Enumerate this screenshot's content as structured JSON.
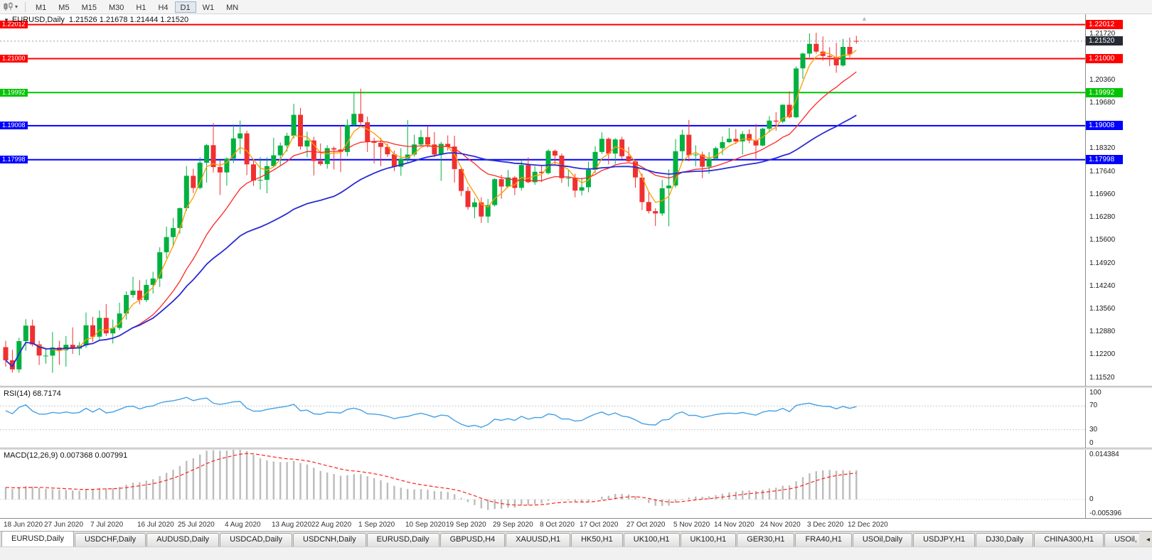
{
  "icons": {
    "dropdown": "▾",
    "collapse": "▼",
    "autoscroll": "▲",
    "tab_scroll_left": "◂"
  },
  "toolbar": {
    "timeframes": [
      "M1",
      "M5",
      "M15",
      "M30",
      "H1",
      "H4",
      "D1",
      "W1",
      "MN"
    ],
    "active_timeframe": "D1"
  },
  "chart": {
    "header_symbol": "EURUSD,Daily",
    "header_ohlc": "1.21526 1.21678 1.21444 1.21520",
    "current_price": "1.21520",
    "current_price_color": "#262a33"
  },
  "chart_data": {
    "type": "candlestick",
    "title": "EURUSD,Daily",
    "symbol": "EURUSD",
    "timeframe": "Daily",
    "grid": false,
    "ylim": [
      1.1128,
      1.2232
    ],
    "up_color": "#00b140",
    "down_color": "#f03030",
    "y_ticks": [
      "1.21720",
      "1.21040",
      "1.20360",
      "1.19680",
      "1.19000",
      "1.18320",
      "1.17640",
      "1.16960",
      "1.16280",
      "1.15600",
      "1.14920",
      "1.14240",
      "1.13560",
      "1.12880",
      "1.12200",
      "1.11520"
    ],
    "x_labels": [
      "18 Jun 2020",
      "27 Jun 2020",
      "7 Jul 2020",
      "16 Jul 2020",
      "25 Jul 2020",
      "4 Aug 2020",
      "13 Aug 2020",
      "22 Aug 2020",
      "1 Sep 2020",
      "10 Sep 2020",
      "19 Sep 2020",
      "29 Sep 2020",
      "8 Oct 2020",
      "17 Oct 2020",
      "27 Oct 2020",
      "5 Nov 2020",
      "14 Nov 2020",
      "24 Nov 2020",
      "3 Dec 2020",
      "12 Dec 2020"
    ],
    "x_label_indices": [
      0,
      6,
      13,
      20,
      26,
      33,
      40,
      46,
      53,
      60,
      66,
      73,
      80,
      86,
      93,
      100,
      106,
      113,
      120,
      126
    ],
    "hlines": [
      {
        "price": 1.22012,
        "label": "1.22012",
        "color": "#ff0000",
        "width": 2
      },
      {
        "price": 1.21,
        "label": "1.21000",
        "color": "#ff0000",
        "width": 2
      },
      {
        "price": 1.19992,
        "label": "1.19992",
        "color": "#00c400",
        "width": 2
      },
      {
        "price": 1.19008,
        "label": "1.19008",
        "color": "#0000ff",
        "width": 2
      },
      {
        "price": 1.17998,
        "label": "1.17998",
        "color": "#0000ff",
        "width": 2
      }
    ],
    "moving_averages": [
      {
        "name": "ma-line-fast",
        "period": 5,
        "color": "#ff9c00",
        "width": 1.3
      },
      {
        "name": "ma-line-medium",
        "period": 20,
        "color": "#ff2626",
        "width": 1.3
      },
      {
        "name": "ma-line-slow",
        "period": 50,
        "color": "#2b2bd5",
        "width": 1.8
      }
    ],
    "ohlc": [
      [
        1.1243,
        1.1262,
        1.1185,
        1.1204
      ],
      [
        1.1204,
        1.1235,
        1.1168,
        1.1177
      ],
      [
        1.1177,
        1.1271,
        1.1167,
        1.1261
      ],
      [
        1.1261,
        1.1326,
        1.1233,
        1.1307
      ],
      [
        1.1307,
        1.1325,
        1.1245,
        1.1251
      ],
      [
        1.1251,
        1.1262,
        1.119,
        1.1218
      ],
      [
        1.1218,
        1.1239,
        1.1194,
        1.1218
      ],
      [
        1.1218,
        1.1288,
        1.1167,
        1.1242
      ],
      [
        1.1242,
        1.1262,
        1.1191,
        1.1234
      ],
      [
        1.1234,
        1.1276,
        1.1185,
        1.125
      ],
      [
        1.125,
        1.1302,
        1.1223,
        1.1239
      ],
      [
        1.1239,
        1.1258,
        1.1219,
        1.1248
      ],
      [
        1.1248,
        1.1346,
        1.1241,
        1.1308
      ],
      [
        1.1308,
        1.1333,
        1.1259,
        1.1274
      ],
      [
        1.1274,
        1.1352,
        1.1265,
        1.133
      ],
      [
        1.133,
        1.1371,
        1.1276,
        1.1284
      ],
      [
        1.1284,
        1.1325,
        1.1254,
        1.13
      ],
      [
        1.13,
        1.1375,
        1.1293,
        1.1343
      ],
      [
        1.1343,
        1.1409,
        1.1325,
        1.1398
      ],
      [
        1.1398,
        1.1452,
        1.139,
        1.1411
      ],
      [
        1.1411,
        1.1442,
        1.137,
        1.1383
      ],
      [
        1.1383,
        1.1444,
        1.1377,
        1.1428
      ],
      [
        1.1428,
        1.1467,
        1.1402,
        1.1447
      ],
      [
        1.1447,
        1.154,
        1.1422,
        1.1525
      ],
      [
        1.1525,
        1.1601,
        1.1507,
        1.157
      ],
      [
        1.157,
        1.1627,
        1.154,
        1.1597
      ],
      [
        1.1597,
        1.1658,
        1.158,
        1.1656
      ],
      [
        1.1656,
        1.1781,
        1.1648,
        1.1752
      ],
      [
        1.1752,
        1.1773,
        1.1701,
        1.1716
      ],
      [
        1.1716,
        1.1807,
        1.1712,
        1.1791
      ],
      [
        1.1791,
        1.1847,
        1.1732,
        1.1843
      ],
      [
        1.1843,
        1.1909,
        1.1762,
        1.1778
      ],
      [
        1.1778,
        1.1797,
        1.1695,
        1.1762
      ],
      [
        1.1762,
        1.1807,
        1.1723,
        1.1803
      ],
      [
        1.1803,
        1.1905,
        1.179,
        1.1863
      ],
      [
        1.1863,
        1.1916,
        1.1817,
        1.1878
      ],
      [
        1.1878,
        1.1886,
        1.1754,
        1.1786
      ],
      [
        1.1786,
        1.1798,
        1.1722,
        1.1738
      ],
      [
        1.1738,
        1.1808,
        1.1711,
        1.174
      ],
      [
        1.174,
        1.1807,
        1.17,
        1.1781
      ],
      [
        1.1781,
        1.1865,
        1.1777,
        1.1813
      ],
      [
        1.1813,
        1.1851,
        1.1783,
        1.1842
      ],
      [
        1.1842,
        1.188,
        1.1824,
        1.1871
      ],
      [
        1.1871,
        1.1966,
        1.1863,
        1.1933
      ],
      [
        1.1933,
        1.1954,
        1.183,
        1.1839
      ],
      [
        1.1839,
        1.1883,
        1.1807,
        1.1857
      ],
      [
        1.1857,
        1.1868,
        1.1753,
        1.1796
      ],
      [
        1.1796,
        1.1848,
        1.1782,
        1.1787
      ],
      [
        1.1787,
        1.1843,
        1.1773,
        1.1834
      ],
      [
        1.1834,
        1.1839,
        1.1771,
        1.183
      ],
      [
        1.183,
        1.1901,
        1.1763,
        1.1823
      ],
      [
        1.1823,
        1.192,
        1.181,
        1.1903
      ],
      [
        1.1903,
        1.1998,
        1.1898,
        1.1936
      ],
      [
        1.1936,
        1.2011,
        1.1902,
        1.1911
      ],
      [
        1.1911,
        1.1928,
        1.1823,
        1.1854
      ],
      [
        1.1854,
        1.1865,
        1.1789,
        1.185
      ],
      [
        1.185,
        1.1865,
        1.1781,
        1.1838
      ],
      [
        1.1838,
        1.1848,
        1.1808,
        1.1816
      ],
      [
        1.1816,
        1.1827,
        1.1766,
        1.1779
      ],
      [
        1.1779,
        1.1834,
        1.1752,
        1.1803
      ],
      [
        1.1803,
        1.1918,
        1.1789,
        1.1815
      ],
      [
        1.1815,
        1.1874,
        1.1809,
        1.1845
      ],
      [
        1.1845,
        1.1888,
        1.1839,
        1.1867
      ],
      [
        1.1867,
        1.1899,
        1.1836,
        1.1845
      ],
      [
        1.1845,
        1.1882,
        1.1808,
        1.1815
      ],
      [
        1.1815,
        1.1853,
        1.1737,
        1.1847
      ],
      [
        1.1847,
        1.1872,
        1.1827,
        1.1839
      ],
      [
        1.1839,
        1.1871,
        1.1732,
        1.1772
      ],
      [
        1.1772,
        1.1778,
        1.1692,
        1.1707
      ],
      [
        1.1707,
        1.1719,
        1.1651,
        1.1659
      ],
      [
        1.1659,
        1.1686,
        1.1626,
        1.1673
      ],
      [
        1.1673,
        1.1688,
        1.1612,
        1.1631
      ],
      [
        1.1631,
        1.1683,
        1.1612,
        1.1665
      ],
      [
        1.1665,
        1.1745,
        1.1661,
        1.1742
      ],
      [
        1.1742,
        1.1755,
        1.1684,
        1.172
      ],
      [
        1.172,
        1.1769,
        1.1717,
        1.1747
      ],
      [
        1.1747,
        1.1751,
        1.1695,
        1.1716
      ],
      [
        1.1716,
        1.1797,
        1.1708,
        1.1784
      ],
      [
        1.1784,
        1.1807,
        1.173,
        1.1733
      ],
      [
        1.1733,
        1.1781,
        1.1725,
        1.1764
      ],
      [
        1.1764,
        1.1782,
        1.1733,
        1.176
      ],
      [
        1.176,
        1.1831,
        1.1756,
        1.1826
      ],
      [
        1.1826,
        1.183,
        1.1786,
        1.1812
      ],
      [
        1.1812,
        1.1818,
        1.1731,
        1.1745
      ],
      [
        1.1745,
        1.1771,
        1.172,
        1.1746
      ],
      [
        1.1746,
        1.1758,
        1.1688,
        1.1708
      ],
      [
        1.1708,
        1.1746,
        1.1694,
        1.1718
      ],
      [
        1.1718,
        1.1794,
        1.1703,
        1.177
      ],
      [
        1.177,
        1.184,
        1.176,
        1.1823
      ],
      [
        1.1823,
        1.1881,
        1.1817,
        1.1862
      ],
      [
        1.1862,
        1.1866,
        1.1786,
        1.1818
      ],
      [
        1.1818,
        1.1864,
        1.1787,
        1.186
      ],
      [
        1.186,
        1.1868,
        1.1802,
        1.181
      ],
      [
        1.181,
        1.1838,
        1.1793,
        1.1795
      ],
      [
        1.1795,
        1.18,
        1.1717,
        1.1747
      ],
      [
        1.1747,
        1.1759,
        1.165,
        1.1674
      ],
      [
        1.1674,
        1.1704,
        1.164,
        1.1647
      ],
      [
        1.1647,
        1.1656,
        1.1603,
        1.164
      ],
      [
        1.164,
        1.174,
        1.1633,
        1.1715
      ],
      [
        1.1715,
        1.1771,
        1.1602,
        1.1723
      ],
      [
        1.1723,
        1.1861,
        1.1716,
        1.1825
      ],
      [
        1.1825,
        1.1889,
        1.1795,
        1.1874
      ],
      [
        1.1874,
        1.1918,
        1.1795,
        1.1813
      ],
      [
        1.1813,
        1.1843,
        1.178,
        1.1815
      ],
      [
        1.1815,
        1.1824,
        1.1745,
        1.1779
      ],
      [
        1.1779,
        1.1823,
        1.1758,
        1.1803
      ],
      [
        1.1803,
        1.1839,
        1.1799,
        1.1834
      ],
      [
        1.1834,
        1.1869,
        1.1814,
        1.1852
      ],
      [
        1.1852,
        1.1894,
        1.1849,
        1.1862
      ],
      [
        1.1862,
        1.1891,
        1.1846,
        1.1854
      ],
      [
        1.1854,
        1.1885,
        1.1815,
        1.1876
      ],
      [
        1.1876,
        1.189,
        1.1849,
        1.1857
      ],
      [
        1.1857,
        1.1906,
        1.18,
        1.1842
      ],
      [
        1.1842,
        1.1895,
        1.184,
        1.1892
      ],
      [
        1.1892,
        1.1929,
        1.1881,
        1.1916
      ],
      [
        1.1916,
        1.1941,
        1.1886,
        1.1913
      ],
      [
        1.1913,
        1.1964,
        1.1908,
        1.1963
      ],
      [
        1.1963,
        1.2003,
        1.1923,
        1.1926
      ],
      [
        1.1926,
        1.2077,
        1.1923,
        1.2071
      ],
      [
        1.2071,
        1.2118,
        1.204,
        1.2115
      ],
      [
        1.2115,
        1.2175,
        1.2103,
        1.2144
      ],
      [
        1.2144,
        1.2177,
        1.2115,
        1.2121
      ],
      [
        1.2121,
        1.2166,
        1.2094,
        1.2108
      ],
      [
        1.2108,
        1.2134,
        1.2078,
        1.2105
      ],
      [
        1.2105,
        1.2147,
        1.2058,
        1.208
      ],
      [
        1.208,
        1.2159,
        1.2076,
        1.2135
      ],
      [
        1.2135,
        1.2163,
        1.2104,
        1.2113
      ],
      [
        1.21526,
        1.21678,
        1.21444,
        1.2152
      ]
    ]
  },
  "rsi": {
    "label": "RSI(14) 68.7174",
    "period": 14,
    "value": "68.7174",
    "levels": [
      "100",
      "70",
      "30",
      "0"
    ],
    "line_color": "#45a1e6"
  },
  "macd": {
    "label": "MACD(12,26,9) 0.007368 0.007991",
    "fast": 12,
    "slow": 26,
    "signal": 9,
    "value": "0.007368",
    "signal_value": "0.007991",
    "scale_labels": [
      "0.014384",
      "0",
      "-0.005396"
    ],
    "range": [
      -0.005396,
      0.014384
    ],
    "hist_color": "#bcbcbc",
    "signal_color": "#ff2020"
  },
  "tabs": {
    "active_index": 0,
    "items": [
      "EURUSD,Daily",
      "USDCHF,Daily",
      "AUDUSD,Daily",
      "USDCAD,Daily",
      "USDCNH,Daily",
      "EURUSD,Daily",
      "GBPUSD,H4",
      "XAUUSD,H1",
      "HK50,H1",
      "UK100,H1",
      "UK100,H1",
      "GER30,H1",
      "FRA40,H1",
      "USOil,Daily",
      "USDJPY,H1",
      "DJ30,Daily",
      "CHINA300,H1",
      "USOil,"
    ]
  }
}
